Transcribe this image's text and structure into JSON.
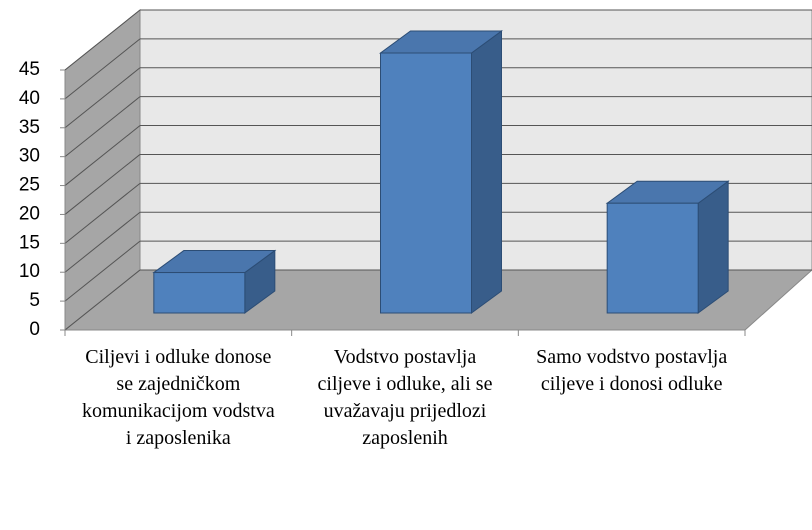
{
  "chart_data": {
    "type": "bar3d",
    "categories": [
      "Ciljevi i odluke donose se zajedničkom komunikacijom vodstva i zaposlenika",
      "Vodstvo postavlja ciljeve i odluke, ali se uvažavaju prijedlozi zaposlenih",
      "Samo vodstvo postavlja ciljeve i donosi odluke"
    ],
    "values": [
      7,
      45,
      19
    ],
    "color": "#4f81bd",
    "ylim": [
      0,
      45
    ],
    "yticks": [
      0,
      5,
      10,
      15,
      20,
      25,
      30,
      35,
      40,
      45
    ],
    "grid": true
  }
}
